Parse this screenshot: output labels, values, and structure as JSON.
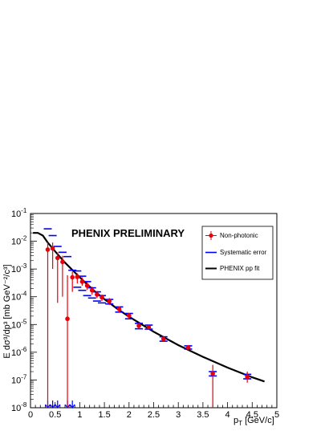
{
  "chart_data": {
    "type": "scatter",
    "title": "",
    "annotation": "PHENIX PRELIMINARY",
    "xlabel": {
      "prefix": "p",
      "sub": "T",
      "suffix": " [GeV/c]"
    },
    "ylabel": {
      "text": "E dσ³/dp³ [mb GeV⁻²/c³]"
    },
    "xlim": [
      0,
      5
    ],
    "ylim": [
      1e-08,
      0.1
    ],
    "yscale": "log",
    "x_ticks": [
      {
        "value": 0,
        "label": "0"
      },
      {
        "value": 0.5,
        "label": "0.5"
      },
      {
        "value": 1,
        "label": "1"
      },
      {
        "value": 1.5,
        "label": "1.5"
      },
      {
        "value": 2,
        "label": "2"
      },
      {
        "value": 2.5,
        "label": "2.5"
      },
      {
        "value": 3,
        "label": "3"
      },
      {
        "value": 3.5,
        "label": "3.5"
      },
      {
        "value": 4,
        "label": "4"
      },
      {
        "value": 4.5,
        "label": "4.5"
      },
      {
        "value": 5,
        "label": "5"
      }
    ],
    "y_ticks": [
      {
        "exp": -1,
        "base": "10",
        "sup": "-1"
      },
      {
        "exp": -2,
        "base": "10",
        "sup": "-2"
      },
      {
        "exp": -3,
        "base": "10",
        "sup": "-3"
      },
      {
        "exp": -4,
        "base": "10",
        "sup": "-4"
      },
      {
        "exp": -5,
        "base": "10",
        "sup": "-5"
      },
      {
        "exp": -6,
        "base": "10",
        "sup": "-6"
      },
      {
        "exp": -7,
        "base": "10",
        "sup": "-7"
      },
      {
        "exp": -8,
        "base": "10",
        "sup": "-8"
      }
    ],
    "grid": false,
    "legend_position": "top-right",
    "series": [
      {
        "name": "Non-photonic",
        "color": "#e8000b",
        "marker": "circle",
        "points": [
          {
            "x": 0.35,
            "y": 0.005,
            "lo": 1e-08,
            "hi": 0.009
          },
          {
            "x": 0.45,
            "y": 0.0055,
            "lo": 0.001,
            "hi": 0.009
          },
          {
            "x": 0.55,
            "y": 0.0025,
            "lo": 6e-05,
            "hi": 0.004
          },
          {
            "x": 0.65,
            "y": 0.0018,
            "lo": 0.0001,
            "hi": 0.003
          },
          {
            "x": 0.75,
            "y": 1.6e-05,
            "lo": 1e-08,
            "hi": 0.0006
          },
          {
            "x": 0.85,
            "y": 0.0005,
            "lo": 0.00015,
            "hi": 0.0008
          },
          {
            "x": 0.95,
            "y": 0.00052,
            "lo": 0.0003,
            "hi": 0.0007
          },
          {
            "x": 1.05,
            "y": 0.00035,
            "lo": 0.00025,
            "hi": 0.0005
          },
          {
            "x": 1.15,
            "y": 0.00025,
            "lo": 0.00018,
            "hi": 0.00033
          },
          {
            "x": 1.25,
            "y": 0.00017,
            "lo": 0.00012,
            "hi": 0.00023
          },
          {
            "x": 1.35,
            "y": 0.00012,
            "lo": 9e-05,
            "hi": 0.00016
          },
          {
            "x": 1.45,
            "y": 9.5e-05,
            "lo": 7e-05,
            "hi": 0.00012
          },
          {
            "x": 1.6,
            "y": 7e-05,
            "lo": 5e-05,
            "hi": 9e-05
          },
          {
            "x": 1.8,
            "y": 3.6e-05,
            "lo": 2.8e-05,
            "hi": 4.5e-05
          },
          {
            "x": 2.0,
            "y": 2.1e-05,
            "lo": 1.6e-05,
            "hi": 2.6e-05
          },
          {
            "x": 2.2,
            "y": 9e-06,
            "lo": 7e-06,
            "hi": 1.15e-05
          },
          {
            "x": 2.4,
            "y": 8e-06,
            "lo": 6.5e-06,
            "hi": 9.5e-06
          },
          {
            "x": 2.7,
            "y": 3e-06,
            "lo": 2.4e-06,
            "hi": 3.7e-06
          },
          {
            "x": 3.2,
            "y": 1.5e-06,
            "lo": 1.2e-06,
            "hi": 1.8e-06
          },
          {
            "x": 3.7,
            "y": 1.7e-07,
            "lo": 1e-08,
            "hi": 3.5e-07
          },
          {
            "x": 4.4,
            "y": 1.3e-07,
            "lo": 8e-08,
            "hi": 2e-07
          }
        ]
      },
      {
        "name": "Systematic error",
        "color": "#0000ff",
        "marker": "dash",
        "points": [
          {
            "x": 0.35,
            "y": 0.028,
            "arrow": true
          },
          {
            "x": 0.45,
            "y": 0.016,
            "arrow": true
          },
          {
            "x": 0.55,
            "y": 0.0065,
            "arrow": true
          },
          {
            "x": 0.65,
            "y": 0.004,
            "arrow": false
          },
          {
            "x": 0.75,
            "y": 0.0028,
            "arrow": true
          },
          {
            "x": 0.85,
            "y": 0.0009,
            "arrow": true
          },
          {
            "x": 0.95,
            "y": 0.00085,
            "lo": 0.00022
          },
          {
            "x": 1.05,
            "y": 0.00055,
            "lo": 0.00017
          },
          {
            "x": 1.15,
            "y": 0.00035,
            "lo": 0.00011
          },
          {
            "x": 1.25,
            "y": 0.00021,
            "lo": 9e-05
          },
          {
            "x": 1.35,
            "y": 0.00015,
            "lo": 7e-05
          },
          {
            "x": 1.45,
            "y": 0.00011,
            "lo": 6e-05
          },
          {
            "x": 1.6,
            "y": 8e-05,
            "lo": 5.5e-05
          },
          {
            "x": 1.8,
            "y": 4.3e-05,
            "lo": 2.8e-05
          },
          {
            "x": 2.0,
            "y": 2.5e-05,
            "lo": 1.6e-05
          },
          {
            "x": 2.2,
            "y": 1.1e-05,
            "lo": 7e-06
          },
          {
            "x": 2.4,
            "y": 9.5e-06,
            "lo": 6.8e-06
          },
          {
            "x": 2.7,
            "y": 3.6e-06,
            "lo": 2.5e-06
          },
          {
            "x": 3.2,
            "y": 1.7e-06,
            "lo": 1.3e-06
          },
          {
            "x": 3.7,
            "y": 2e-07,
            "lo": 1.4e-07
          },
          {
            "x": 4.4,
            "y": 1.6e-07,
            "lo": 1.1e-07
          }
        ]
      },
      {
        "name": "PHENIX pp fit",
        "color": "#000000",
        "marker": "line",
        "x": [
          0.05,
          0.15,
          0.25,
          0.35,
          0.5,
          0.7,
          0.9,
          1.1,
          1.3,
          1.5,
          1.75,
          2.0,
          2.5,
          3.0,
          3.5,
          4.0,
          4.5,
          4.75
        ],
        "y": [
          0.02,
          0.02,
          0.016,
          0.009,
          0.0043,
          0.0017,
          0.00075,
          0.00034,
          0.00016,
          8.2e-05,
          3.8e-05,
          1.9e-05,
          5.5e-06,
          1.8e-06,
          6.8e-07,
          2.8e-07,
          1.25e-07,
          8.8e-08
        ]
      }
    ]
  }
}
